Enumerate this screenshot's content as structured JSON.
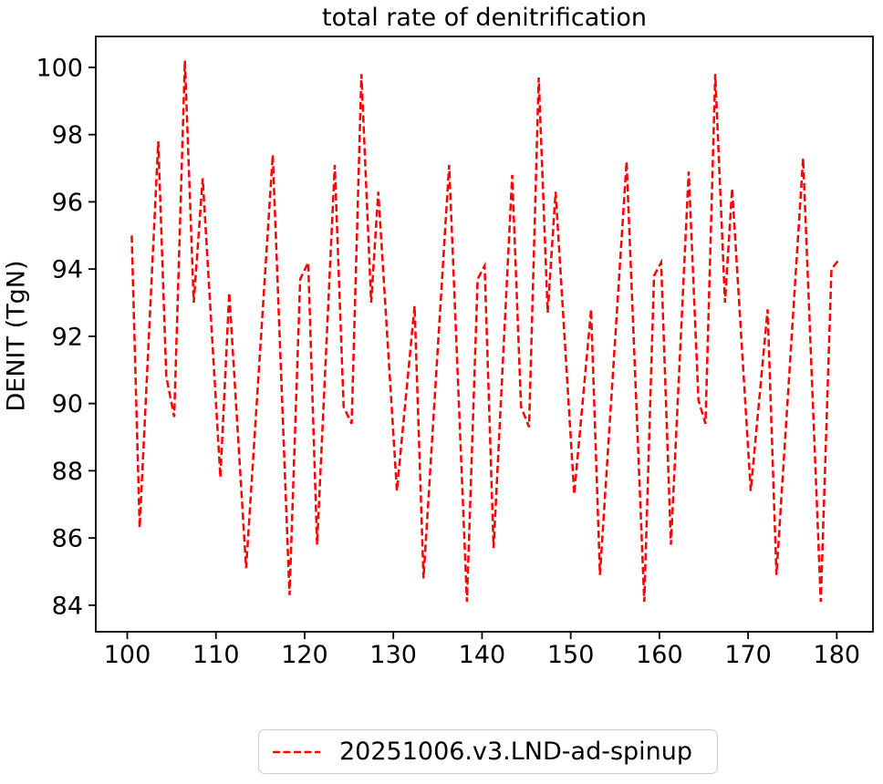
{
  "chart_data": {
    "type": "line",
    "title": "total rate of denitrification",
    "xlabel": "",
    "ylabel": "DENIT (TgN)",
    "xlim": [
      96.45,
      184.08
    ],
    "ylim": [
      83.21,
      100.92
    ],
    "x_ticks": [
      100,
      110,
      120,
      130,
      140,
      150,
      160,
      170,
      180
    ],
    "y_ticks": [
      84,
      86,
      88,
      90,
      92,
      94,
      96,
      98,
      100
    ],
    "grid": false,
    "legend_position": "lower center, below axes",
    "series": [
      {
        "name": "20251006.v3.LND-ad-spinup",
        "color": "#ff0000",
        "linestyle": "dashed",
        "points": [
          [
            100.5,
            95.0
          ],
          [
            101.4,
            86.3
          ],
          [
            103.5,
            97.8
          ],
          [
            104.4,
            90.8
          ],
          [
            105.3,
            89.6
          ],
          [
            106.5,
            100.2
          ],
          [
            107.5,
            93.0
          ],
          [
            108.5,
            96.7
          ],
          [
            110.5,
            87.8
          ],
          [
            111.5,
            93.3
          ],
          [
            113.4,
            85.1
          ],
          [
            116.4,
            97.4
          ],
          [
            118.3,
            84.3
          ],
          [
            119.5,
            93.7
          ],
          [
            120.4,
            94.2
          ],
          [
            121.4,
            85.8
          ],
          [
            123.4,
            97.1
          ],
          [
            124.4,
            89.9
          ],
          [
            125.3,
            89.4
          ],
          [
            126.4,
            99.8
          ],
          [
            127.5,
            93.0
          ],
          [
            128.3,
            96.3
          ],
          [
            130.4,
            87.4
          ],
          [
            132.4,
            92.9
          ],
          [
            133.4,
            84.8
          ],
          [
            136.3,
            97.1
          ],
          [
            138.3,
            84.1
          ],
          [
            139.5,
            93.7
          ],
          [
            140.3,
            94.1
          ],
          [
            141.3,
            85.7
          ],
          [
            143.4,
            96.8
          ],
          [
            144.4,
            89.9
          ],
          [
            145.3,
            89.3
          ],
          [
            146.4,
            99.7
          ],
          [
            147.4,
            92.7
          ],
          [
            148.3,
            96.3
          ],
          [
            150.4,
            87.3
          ],
          [
            152.3,
            92.8
          ],
          [
            153.3,
            84.9
          ],
          [
            156.3,
            97.2
          ],
          [
            158.3,
            84.1
          ],
          [
            159.4,
            93.8
          ],
          [
            160.2,
            94.2
          ],
          [
            161.3,
            85.8
          ],
          [
            163.3,
            96.9
          ],
          [
            164.4,
            90.1
          ],
          [
            165.2,
            89.4
          ],
          [
            166.3,
            99.8
          ],
          [
            167.4,
            93.0
          ],
          [
            168.2,
            96.4
          ],
          [
            170.3,
            87.4
          ],
          [
            172.2,
            92.8
          ],
          [
            173.2,
            84.9
          ],
          [
            176.2,
            97.3
          ],
          [
            178.2,
            84.1
          ],
          [
            179.4,
            94.0
          ],
          [
            180.3,
            94.3
          ]
        ]
      }
    ]
  }
}
